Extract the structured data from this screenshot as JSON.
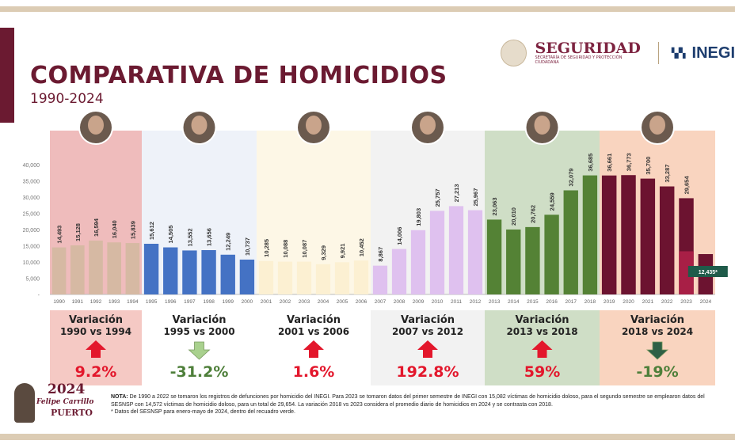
{
  "header": {
    "title": "COMPARATIVA DE HOMICIDIOS",
    "subtitle": "1990-2024",
    "logo_seguridad": "SEGURIDAD",
    "logo_seguridad_sub": "SECRETARÍA DE SEGURIDAD Y PROTECCIÓN CIUDADANA",
    "logo_inegi": "INEGI"
  },
  "chart_data": {
    "type": "bar",
    "yticks": [
      "40,000",
      "35,000",
      "30,000",
      "25,000",
      "20,000",
      "15,000",
      "10,000",
      "5,000",
      "-"
    ],
    "ylim": [
      0,
      40000
    ],
    "grid": false,
    "categories": [
      "1990",
      "1991",
      "1992",
      "1993",
      "1994",
      "1995",
      "1996",
      "1997",
      "1998",
      "1999",
      "2000",
      "2001",
      "2002",
      "2003",
      "2004",
      "2005",
      "2006",
      "2007",
      "2008",
      "2009",
      "2010",
      "2011",
      "2012",
      "2013",
      "2014",
      "2015",
      "2016",
      "2017",
      "2018",
      "2019",
      "2020",
      "2021",
      "2022",
      "2023",
      "2024"
    ],
    "values": [
      14493,
      15128,
      16594,
      16040,
      15839,
      15612,
      14505,
      13552,
      13656,
      12249,
      10737,
      10285,
      10088,
      10087,
      9329,
      9921,
      10452,
      8867,
      14006,
      19803,
      25757,
      27213,
      25967,
      23063,
      20010,
      20762,
      24559,
      32079,
      36685,
      36661,
      36773,
      35700,
      33287,
      29654,
      12435
    ],
    "labels": [
      "14,493",
      "15,128",
      "16,594",
      "16,040",
      "15,839",
      "15,612",
      "14,505",
      "13,552",
      "13,656",
      "12,249",
      "10,737",
      "10,285",
      "10,088",
      "10,087",
      "9,329",
      "9,921",
      "10,452",
      "8,867",
      "14,006",
      "19,803",
      "25,757",
      "27,213",
      "25,967",
      "23,063",
      "20,010",
      "20,762",
      "24,559",
      "32,079",
      "36,685",
      "36,661",
      "36,773",
      "35,700",
      "33,287",
      "29,654",
      "12,435*"
    ],
    "groups": [
      {
        "from": "1990",
        "to": "1994",
        "count": 5,
        "bar_color": "#d6b9a3",
        "panel_color": "#efbcbc",
        "variation_title": "Variación",
        "variation_range": "1990 vs 1994",
        "variation": "9.2%",
        "direction": "up",
        "box_color": "#f5c9c4"
      },
      {
        "from": "1995",
        "to": "2000",
        "count": 6,
        "bar_color": "#4472c4",
        "panel_color": "#eef2f9",
        "variation_title": "Variación",
        "variation_range": "1995 vs 2000",
        "variation": "-31.2%",
        "direction": "down",
        "box_color": "#ffffff"
      },
      {
        "from": "2001",
        "to": "2006",
        "count": 6,
        "bar_color": "#fcf0d2",
        "panel_color": "#fdf7e6",
        "variation_title": "Variación",
        "variation_range": "2001 vs 2006",
        "variation": "1.6%",
        "direction": "up",
        "box_color": "#ffffff"
      },
      {
        "from": "2007",
        "to": "2012",
        "count": 6,
        "bar_color": "#dfc1ef",
        "panel_color": "#f2f2f2",
        "variation_title": "Variación",
        "variation_range": "2007 vs 2012",
        "variation": "192.8%",
        "direction": "up",
        "box_color": "#f2f2f2"
      },
      {
        "from": "2013",
        "to": "2018",
        "count": 6,
        "bar_color": "#548235",
        "panel_color": "#cfdec6",
        "variation_title": "Variación",
        "variation_range": "2013 vs 2018",
        "variation": "59%",
        "direction": "up",
        "box_color": "#cfdec6"
      },
      {
        "from": "2019",
        "to": "2024",
        "count": 6,
        "bar_color": "#6c1330",
        "panel_color": "#f9d4bf",
        "variation_title": "Variación",
        "variation_range": "2018 vs 2024",
        "variation": "-19%",
        "direction": "down",
        "box_color": "#f9d4bf"
      }
    ],
    "highlight": {
      "year": "2023",
      "partial_value": 13300,
      "color": "#a81f46"
    },
    "callout_2024": {
      "label": "12,435*",
      "color": "#1f5b4a"
    },
    "colors": {
      "up": "#e3172c",
      "down_arrow_light": "#a9d18e",
      "down_text": "#4e7f3a",
      "down_arrow_dark": "#2e6046"
    }
  },
  "footer": {
    "logo_year": "2024",
    "logo_name": "Felipe Carrillo",
    "logo_name2": "PUERTO",
    "note_label": "NOTA:",
    "note_text": " De 1990 a 2022 se tomaron los registros de defunciones por homicidio del INEGI. Para 2023 se tomaron datos del primer semestre de INEGI con 15,082 víctimas de homicidio doloso, para el segundo semestre se emplearon datos del SESNSP con 14,572 víctimas de homicidio doloso, para un total de 29,654. La variación 2018 vs 2023 considera el promedio diario de homicidios en 2024 y se contrasta con 2018.",
    "note_footnote": "* Datos del SESNSP para enero-mayo de 2024, dentro del recuadro verde."
  }
}
